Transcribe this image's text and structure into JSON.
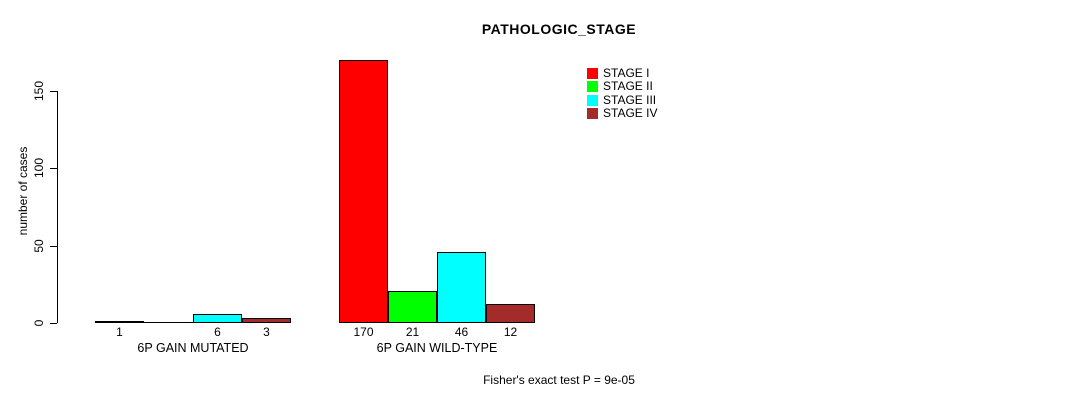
{
  "chart_data": {
    "type": "bar",
    "title": "PATHOLOGIC_STAGE",
    "xlabel": "",
    "ylabel": "number of cases",
    "categories": [
      "6P GAIN MUTATED",
      "6P GAIN WILD-TYPE"
    ],
    "series": [
      {
        "name": "STAGE I",
        "color": "#ff0000",
        "values": [
          1,
          170
        ]
      },
      {
        "name": "STAGE II",
        "color": "#00ff00",
        "values": [
          0,
          21
        ]
      },
      {
        "name": "STAGE III",
        "color": "#00ffff",
        "values": [
          6,
          46
        ]
      },
      {
        "name": "STAGE IV",
        "color": "#a52a2a",
        "values": [
          3,
          12
        ]
      }
    ],
    "value_labels": [
      [
        "1",
        "",
        "6",
        "3"
      ],
      [
        "170",
        "21",
        "46",
        "12"
      ]
    ],
    "yticks": [
      0,
      50,
      100,
      150
    ],
    "ylim": [
      0,
      175
    ],
    "grid": false,
    "legend_position": "top-right",
    "legend_entries": [
      "STAGE I",
      "STAGE II",
      "STAGE III",
      "STAGE IV"
    ],
    "annotation": "Fisher's exact test P = 9e-05",
    "bar_border_color": "#000000",
    "background_color": "#ffffff"
  }
}
